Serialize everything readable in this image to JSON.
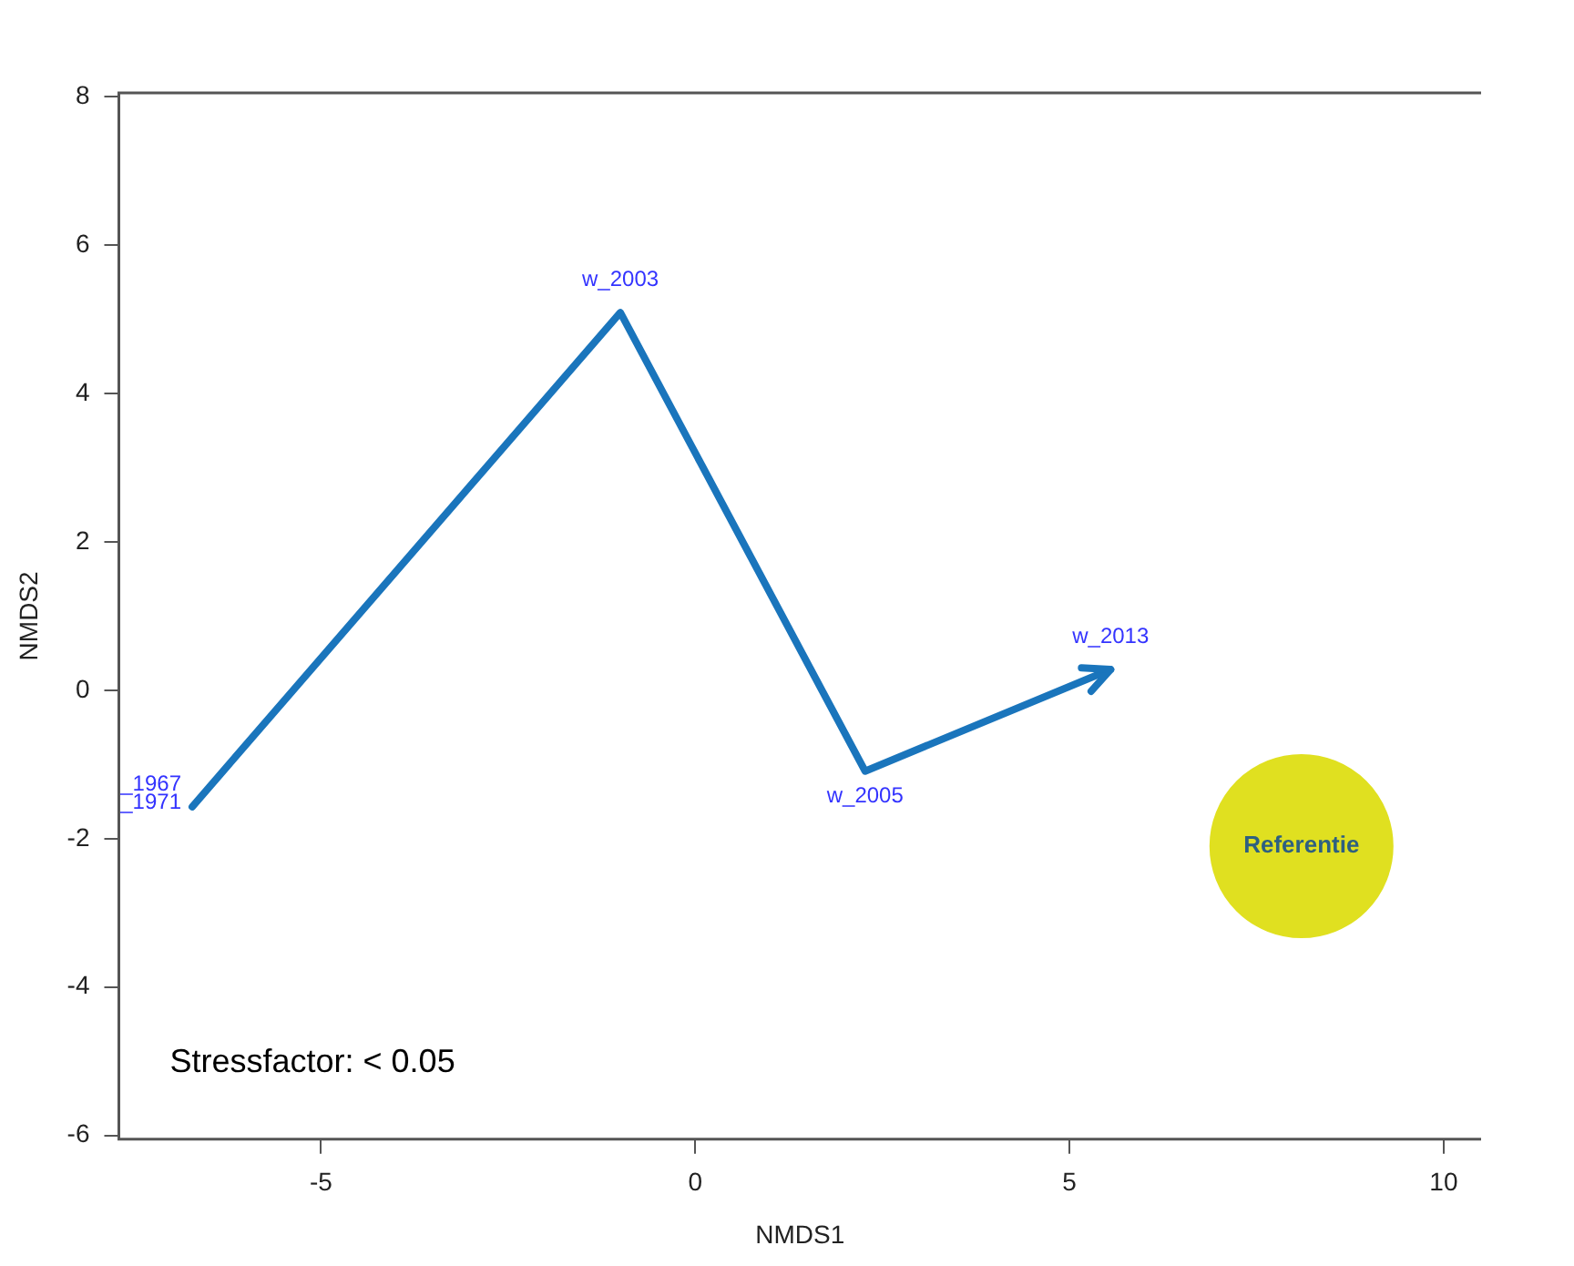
{
  "chart_data": {
    "type": "line",
    "xlabel": "NMDS1",
    "ylabel": "NMDS2",
    "xlim": [
      -7.7,
      10.5
    ],
    "xticks": [
      -5,
      0,
      5,
      10
    ],
    "ylim": [
      -6.05,
      8.05
    ],
    "yticks": [
      -6,
      -4,
      -2,
      0,
      2,
      4,
      6,
      8
    ],
    "grid": false,
    "legend": false,
    "marker": "none",
    "line_style": "solid",
    "series": [
      {
        "color": "#1a75bc",
        "x": [
          -6.72,
          -1.0,
          2.27,
          5.55
        ],
        "values": [
          -1.57,
          5.09,
          -1.09,
          0.28
        ]
      },
      {
        "type": "scatter",
        "name": "Referentie",
        "marker": "circle",
        "color": "#e0e020",
        "x": [
          8.1
        ],
        "values": [
          -2.1
        ]
      }
    ],
    "annotations": [
      {
        "text": "w_2003",
        "x": -1.0,
        "y": 5.09
      },
      {
        "text": "w_2005",
        "x": 2.27,
        "y": -1.09
      },
      {
        "text": "w_2013",
        "x": 5.55,
        "y": 0.28
      },
      {
        "text": "_1967",
        "x": -6.72,
        "y": -1.57
      },
      {
        "text": "_1971",
        "x": -6.72,
        "y": -1.57
      },
      "Stressfactor: < 0.05"
    ]
  }
}
